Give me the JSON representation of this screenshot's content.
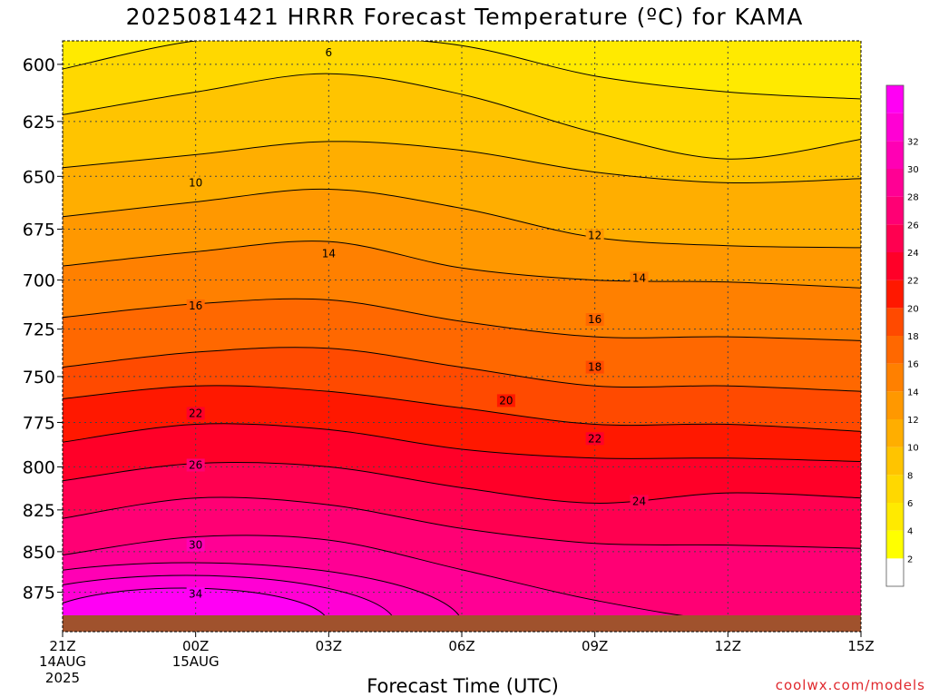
{
  "title": "2025081421 HRRR Forecast Temperature (ºC) for KAMA",
  "xlabel": "Forecast Time (UTC)",
  "credit": "coolwx.com/models",
  "chart_data": {
    "type": "heatmap",
    "title": "2025081421 HRRR Forecast Temperature (ºC) for KAMA",
    "xlabel": "Forecast Time (UTC)",
    "ylabel": "",
    "x_ticks": [
      {
        "hour": 0,
        "label": "21Z",
        "sub1": "14AUG",
        "sub2": "2025"
      },
      {
        "hour": 3,
        "label": "00Z",
        "sub1": "15AUG",
        "sub2": ""
      },
      {
        "hour": 6,
        "label": "03Z",
        "sub1": "",
        "sub2": ""
      },
      {
        "hour": 9,
        "label": "06Z",
        "sub1": "",
        "sub2": ""
      },
      {
        "hour": 12,
        "label": "09Z",
        "sub1": "",
        "sub2": ""
      },
      {
        "hour": 15,
        "label": "12Z",
        "sub1": "",
        "sub2": ""
      },
      {
        "hour": 18,
        "label": "15Z",
        "sub1": "",
        "sub2": ""
      }
    ],
    "xlim": [
      0,
      18
    ],
    "y_ticks": [
      600,
      625,
      650,
      675,
      700,
      725,
      750,
      775,
      800,
      825,
      850,
      875
    ],
    "ylim_hpa": [
      590,
      900
    ],
    "y_scale": "log-pressure",
    "grid": true,
    "hours": [
      0,
      3,
      6,
      9,
      12,
      15,
      18
    ],
    "isotherm_pressures": [
      {
        "temp": 6,
        "values": [
          602,
          590,
          588,
          592,
          605,
          612,
          615
        ]
      },
      {
        "temp": 8,
        "values": [
          622,
          612,
          604,
          613,
          630,
          642,
          633
        ]
      },
      {
        "temp": 10,
        "values": [
          646,
          640,
          634,
          638,
          648,
          653,
          651
        ]
      },
      {
        "temp": 12,
        "values": [
          669,
          662,
          656,
          665,
          679,
          683,
          684
        ]
      },
      {
        "temp": 14,
        "values": [
          693,
          686,
          681,
          694,
          700,
          701,
          704
        ]
      },
      {
        "temp": 16,
        "values": [
          719,
          712,
          710,
          721,
          729,
          729,
          731
        ]
      },
      {
        "temp": 18,
        "values": [
          745,
          737,
          735,
          745,
          755,
          755,
          758
        ]
      },
      {
        "temp": 20,
        "values": [
          762,
          755,
          758,
          767,
          776,
          776,
          780
        ]
      },
      {
        "temp": 22,
        "values": [
          786,
          776,
          779,
          790,
          795,
          795,
          797
        ]
      },
      {
        "temp": 24,
        "values": [
          808,
          798,
          800,
          812,
          821,
          815,
          818
        ]
      },
      {
        "temp": 26,
        "values": [
          830,
          818,
          822,
          836,
          845,
          846,
          848
        ]
      },
      {
        "temp": 28,
        "values": [
          852,
          841,
          843,
          861,
          880,
          893,
          893
        ]
      }
    ],
    "warm_pockets": [
      {
        "temp": 30,
        "label": "30",
        "center_hour": 3.5
      },
      {
        "temp": 32,
        "label": "32",
        "center_hour": 3.0
      },
      {
        "temp": 34,
        "label": "34",
        "center_hour": 2.5
      }
    ],
    "contour_labels": [
      {
        "text": "6",
        "hour": 6.0,
        "hpa": 595
      },
      {
        "text": "10",
        "hour": 3.0,
        "hpa": 653
      },
      {
        "text": "12",
        "hour": 12.0,
        "hpa": 678
      },
      {
        "text": "14",
        "hour": 6.0,
        "hpa": 687
      },
      {
        "text": "14",
        "hour": 13.0,
        "hpa": 699
      },
      {
        "text": "16",
        "hour": 3.0,
        "hpa": 713
      },
      {
        "text": "16",
        "hour": 12.0,
        "hpa": 720
      },
      {
        "text": "18",
        "hour": 12.0,
        "hpa": 745
      },
      {
        "text": "20",
        "hour": 10.0,
        "hpa": 763
      },
      {
        "text": "22",
        "hour": 3.0,
        "hpa": 770
      },
      {
        "text": "22",
        "hour": 12.0,
        "hpa": 784
      },
      {
        "text": "24",
        "hour": 13.0,
        "hpa": 820
      },
      {
        "text": "26",
        "hour": 3.0,
        "hpa": 799
      },
      {
        "text": "30",
        "hour": 3.0,
        "hpa": 846
      },
      {
        "text": "34",
        "hour": 3.0,
        "hpa": 876
      }
    ],
    "colorbar": {
      "ticks": [
        "2",
        "4",
        "6",
        "8",
        "10",
        "12",
        "14",
        "16",
        "18",
        "20",
        "22",
        "24",
        "26",
        "28",
        "30",
        "32"
      ],
      "colors": [
        "#ffffff",
        "#ffff00",
        "#ffea00",
        "#ffd800",
        "#ffc400",
        "#ffae00",
        "#ff9800",
        "#ff8000",
        "#ff6800",
        "#ff4a00",
        "#ff1800",
        "#ff0028",
        "#ff0050",
        "#ff0074",
        "#ff0094",
        "#ff00b4",
        "#ff00d4",
        "#ff00f4"
      ]
    },
    "colors": {
      "terrain": "#a0522d",
      "contour": "#000000",
      "grid": "#444444"
    }
  }
}
